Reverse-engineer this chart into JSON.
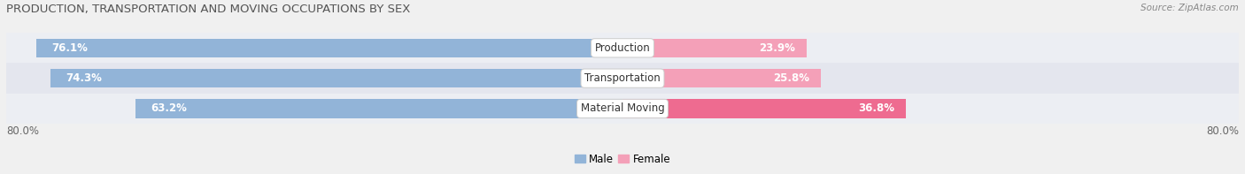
{
  "title": "PRODUCTION, TRANSPORTATION AND MOVING OCCUPATIONS BY SEX",
  "source": "Source: ZipAtlas.com",
  "categories": [
    "Production",
    "Transportation",
    "Material Moving"
  ],
  "male_values": [
    76.1,
    74.3,
    63.2
  ],
  "female_values": [
    23.9,
    25.8,
    36.8
  ],
  "male_color": "#92b4d8",
  "female_color": "#f4a0b8",
  "female_color_bright": "#ee6b90",
  "axis_min": -80.0,
  "axis_max": 80.0,
  "axis_label_left": "80.0%",
  "axis_label_right": "80.0%",
  "bar_height": 0.62,
  "bg_color": "#f0f0f0",
  "row_bg_even": "#e8eaf0",
  "row_bg_odd": "#e0e2ea",
  "label_fontsize": 8.5,
  "title_fontsize": 9.5,
  "source_fontsize": 7.5
}
